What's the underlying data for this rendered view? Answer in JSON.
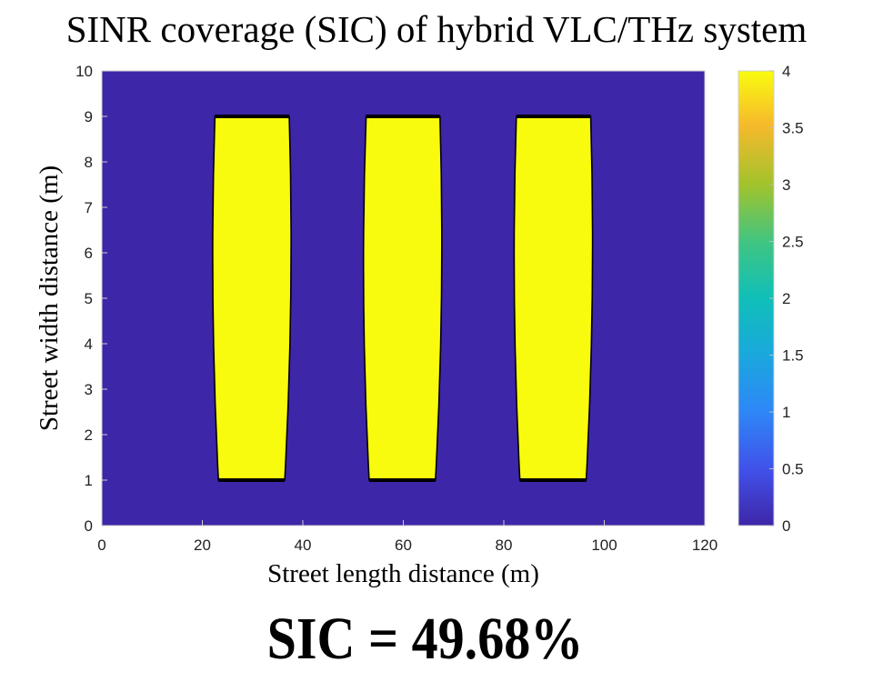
{
  "page": {
    "title": "SINR coverage (SIC) of hybrid VLC/THz system",
    "sic_label": "SIC = 49.68%"
  },
  "chart_data": {
    "type": "heatmap",
    "title": "SINR coverage (SIC) of hybrid VLC/THz system",
    "xlabel": "Street length distance (m)",
    "ylabel": "Street width distance (m)",
    "xlim": [
      0,
      120
    ],
    "ylim": [
      0,
      10
    ],
    "xticks": [
      0,
      20,
      40,
      60,
      80,
      100,
      120
    ],
    "yticks": [
      0,
      1,
      2,
      3,
      4,
      5,
      6,
      7,
      8,
      9,
      10
    ],
    "background_value": 0,
    "regions": [
      {
        "value": 4,
        "x_top": [
          22.5,
          37.3
        ],
        "x_mid": [
          22.1,
          37.6
        ],
        "x_bottom": [
          23.2,
          36.4
        ],
        "y": [
          1,
          9
        ]
      },
      {
        "value": 4,
        "x_top": [
          52.6,
          67.3
        ],
        "x_mid": [
          52.1,
          67.6
        ],
        "x_bottom": [
          53.2,
          66.4
        ],
        "y": [
          1,
          9
        ]
      },
      {
        "value": 4,
        "x_top": [
          82.5,
          97.3
        ],
        "x_mid": [
          82.1,
          97.6
        ],
        "x_bottom": [
          83.2,
          96.4
        ],
        "y": [
          1,
          9
        ]
      }
    ],
    "colorbar": {
      "colormap": "parula",
      "range": [
        0,
        4
      ],
      "ticks": [
        0,
        0.5,
        1,
        1.5,
        2,
        2.5,
        3,
        3.5,
        4
      ],
      "tick_labels": [
        "0",
        "0.5",
        "1",
        "1.5",
        "2",
        "2.5",
        "3",
        "3.5",
        "4"
      ]
    },
    "colors": {
      "low": "#3e26a8",
      "high": "#f9fb0e",
      "edge": "#000000"
    }
  }
}
